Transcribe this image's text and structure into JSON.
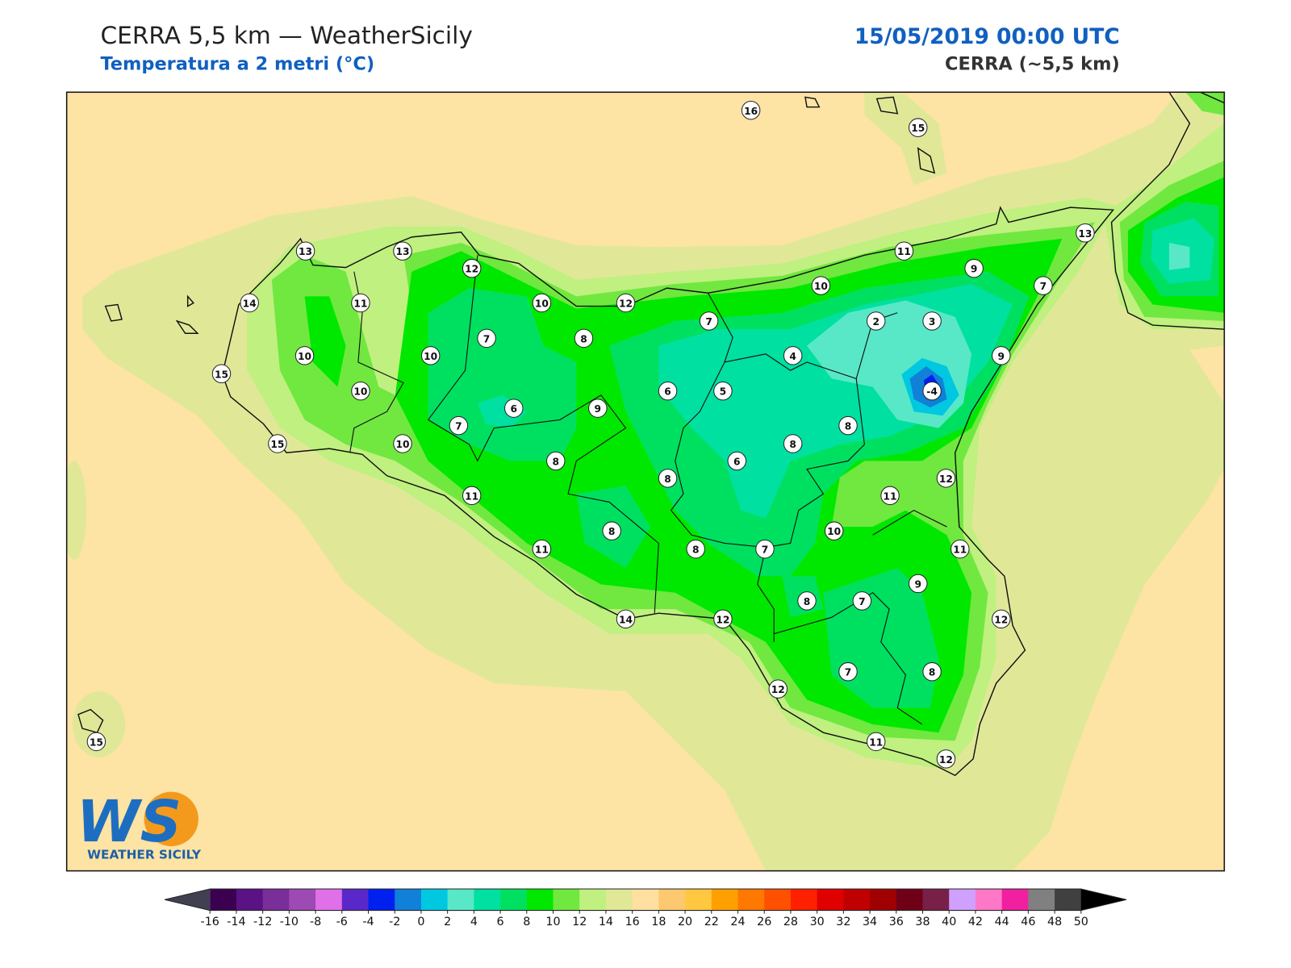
{
  "header": {
    "title": "CERRA 5,5 km — WeatherSicily",
    "subtitle": "Temperatura a 2 metri (°C)",
    "datetime": "15/05/2019 00:00 UTC",
    "model": "CERRA (~5,5 km)"
  },
  "map": {
    "stations": [
      16,
      15,
      13,
      13,
      12,
      11,
      13,
      9,
      14,
      11,
      10,
      12,
      10,
      7,
      7,
      2,
      3,
      7,
      8,
      10,
      10,
      4,
      9,
      15,
      10,
      6,
      5,
      -4,
      6,
      9,
      7,
      8,
      15,
      10,
      8,
      8,
      6,
      8,
      12,
      11,
      11,
      8,
      10,
      11,
      8,
      7,
      11,
      9,
      8,
      7,
      14,
      12,
      12,
      12,
      7,
      8,
      15,
      11,
      12
    ]
  },
  "colorbar": {
    "ticks": [
      -16,
      -14,
      -12,
      -10,
      -8,
      -6,
      -4,
      -2,
      0,
      2,
      4,
      6,
      8,
      10,
      12,
      14,
      16,
      18,
      20,
      22,
      24,
      26,
      28,
      30,
      32,
      34,
      36,
      38,
      40,
      42,
      44,
      46,
      48,
      50
    ],
    "colors": [
      "#3b0050",
      "#5a1285",
      "#7a2e9a",
      "#9e4ab4",
      "#e070e8",
      "#5a28c8",
      "#0020f0",
      "#1080d8",
      "#00c8e0",
      "#58e8c8",
      "#00e0a0",
      "#00e060",
      "#00e800",
      "#70e840",
      "#c0f080",
      "#e0e898",
      "#ffe0a0",
      "#fcc870",
      "#ffc840",
      "#ffa000",
      "#ff7800",
      "#ff5000",
      "#ff2000",
      "#e00000",
      "#c00000",
      "#a00000",
      "#700018",
      "#782048",
      "#d0a0ff",
      "#ff78c8",
      "#f020a0",
      "#808080",
      "#404040"
    ],
    "under_color": "#404050",
    "over_color": "#000000"
  },
  "logo": {
    "mark": "WS",
    "name": "WEATHER SICILY"
  }
}
